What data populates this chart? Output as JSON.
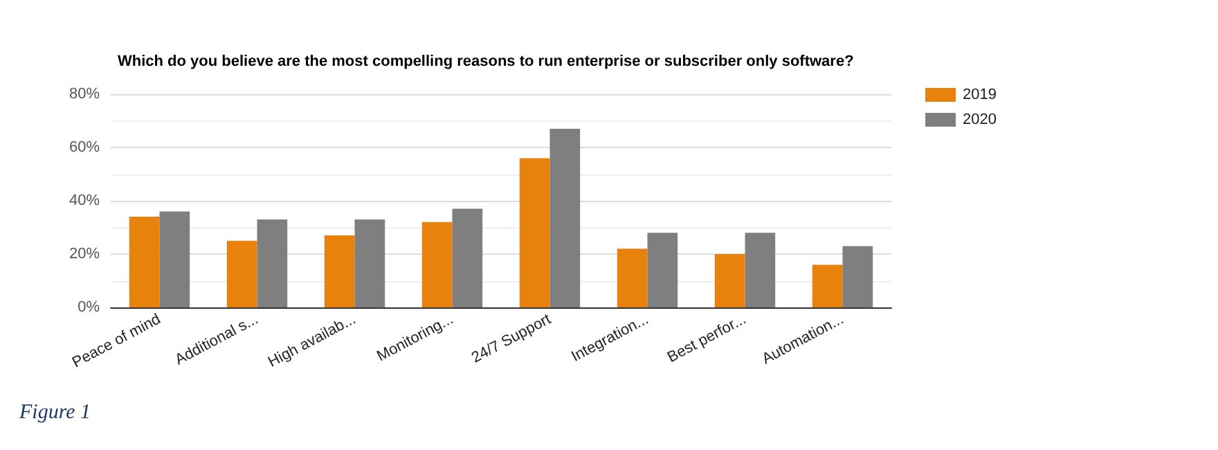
{
  "chart_data": {
    "type": "bar",
    "title": "Which do you believe are the most compelling reasons to run enterprise or subscriber only software?",
    "categories": [
      "Peace of mind",
      "Additional s...",
      "High availab...",
      "Monitoring...",
      "24/7 Support",
      "Integration...",
      "Best perfor...",
      "Automation..."
    ],
    "series": [
      {
        "name": "2019",
        "color": "#e8820c",
        "values": [
          34,
          25,
          27,
          32,
          56,
          22,
          20,
          16
        ]
      },
      {
        "name": "2020",
        "color": "#7f7f7f",
        "values": [
          36,
          33,
          33,
          37,
          67,
          28,
          28,
          23
        ]
      }
    ],
    "ylim": [
      0,
      80
    ],
    "yticks": [
      {
        "value": 0,
        "label": "0%"
      },
      {
        "value": 20,
        "label": "20%"
      },
      {
        "value": 40,
        "label": "40%"
      },
      {
        "value": 60,
        "label": "60%"
      },
      {
        "value": 80,
        "label": "80%"
      }
    ],
    "grid": "y",
    "legend": "top right",
    "annotations": [
      "Figure 1"
    ]
  }
}
